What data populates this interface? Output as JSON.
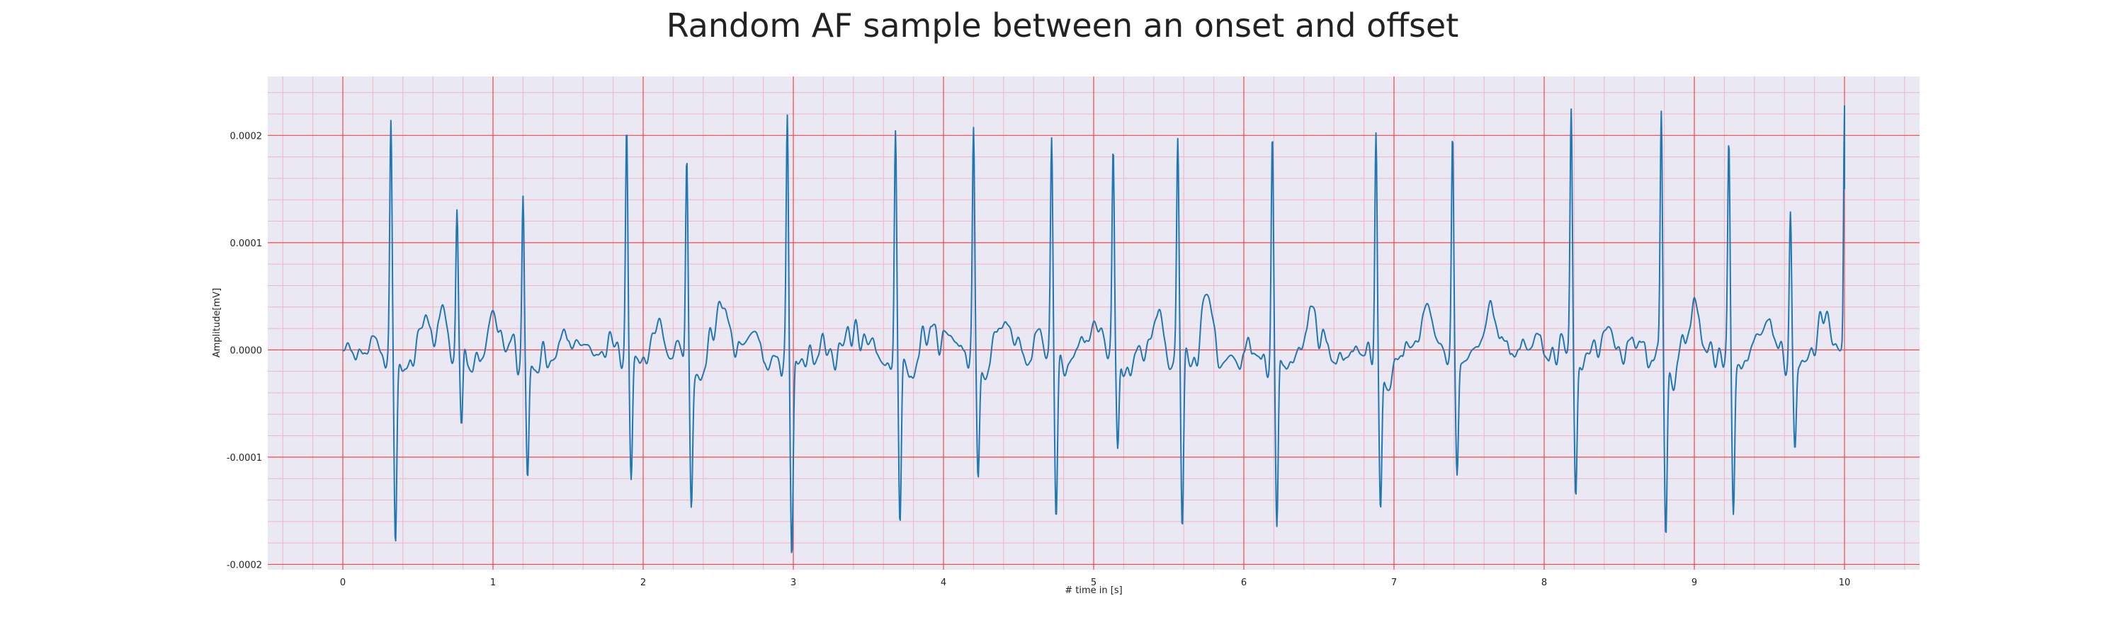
{
  "chart_data": {
    "type": "line",
    "title": "Random AF sample between an onset and offset",
    "xlabel": "# time in [s]",
    "ylabel": "Amplitude[mV]",
    "xlim": [
      -0.5,
      10.5
    ],
    "ylim": [
      -0.000205,
      0.000255
    ],
    "x_ticks": [
      0,
      1,
      2,
      3,
      4,
      5,
      6,
      7,
      8,
      9,
      10
    ],
    "x_tick_labels": [
      "0",
      "1",
      "2",
      "3",
      "4",
      "5",
      "6",
      "7",
      "8",
      "9",
      "10"
    ],
    "y_ticks": [
      -0.0002,
      -0.0001,
      0.0,
      0.0001,
      0.0002
    ],
    "y_tick_labels": [
      "-0.0002",
      "-0.0001",
      "0.0000",
      "0.0001",
      "0.0002"
    ],
    "grid": true,
    "minor_grid": true,
    "colors": {
      "line": "#1f77b4",
      "plot_background": "#eae8f2",
      "major_grid": "#ef4a4a",
      "minor_grid": "#f2b4c2",
      "text": "#222222"
    },
    "series": [
      {
        "qrs_complexes": [
          {
            "t": 0.32,
            "peak": 0.000208,
            "trough": -0.000182
          },
          {
            "t": 0.76,
            "peak": 0.000132,
            "trough": -7.8e-05
          },
          {
            "t": 1.2,
            "peak": 0.000152,
            "trough": -0.000112
          },
          {
            "t": 1.89,
            "peak": 0.000208,
            "trough": -0.000122
          },
          {
            "t": 2.29,
            "peak": 0.00018,
            "trough": -0.000138
          },
          {
            "t": 2.96,
            "peak": 0.000228,
            "trough": -0.000187
          },
          {
            "t": 3.68,
            "peak": 0.000203,
            "trough": -0.00017
          },
          {
            "t": 4.2,
            "peak": 0.0002,
            "trough": -0.00012
          },
          {
            "t": 4.72,
            "peak": 0.000193,
            "trough": -0.000143
          },
          {
            "t": 5.13,
            "peak": 0.000183,
            "trough": -9.5e-05
          },
          {
            "t": 5.56,
            "peak": 0.000188,
            "trough": -0.000181
          },
          {
            "t": 6.19,
            "peak": 0.000204,
            "trough": -0.000181
          },
          {
            "t": 6.88,
            "peak": 0.000203,
            "trough": -0.00014
          },
          {
            "t": 7.39,
            "peak": 0.000204,
            "trough": -0.000108
          },
          {
            "t": 8.18,
            "peak": 0.000222,
            "trough": -0.000131
          },
          {
            "t": 8.78,
            "peak": 0.000232,
            "trough": -0.000161
          },
          {
            "t": 9.23,
            "peak": 0.000188,
            "trough": -0.000147
          },
          {
            "t": 9.64,
            "peak": 0.000133,
            "trough": -8e-05
          }
        ],
        "final_point": {
          "t": 10.0,
          "peak": 0.000219,
          "end": 0.00015
        },
        "baseline_start": 0.0,
        "baseline_end": 10.0,
        "fibrillatory_waves": [
          {
            "t": 0.55,
            "v": 2e-05
          },
          {
            "t": 0.65,
            "v": 2.7e-05
          },
          {
            "t": 1.0,
            "v": 3.3e-05
          },
          {
            "t": 1.55,
            "v": 1.8e-05
          },
          {
            "t": 2.1,
            "v": 2.2e-05
          },
          {
            "t": 2.52,
            "v": 5.3e-05
          },
          {
            "t": 3.42,
            "v": 1.8e-05
          },
          {
            "t": 3.92,
            "v": 2.2e-05
          },
          {
            "t": 4.4,
            "v": 3.1e-05
          },
          {
            "t": 5.02,
            "v": 3.3e-05
          },
          {
            "t": 5.42,
            "v": 3.3e-05
          },
          {
            "t": 5.75,
            "v": 4.3e-05
          },
          {
            "t": 6.45,
            "v": 3.6e-05
          },
          {
            "t": 7.23,
            "v": 3.1e-05
          },
          {
            "t": 7.65,
            "v": 2.9e-05
          },
          {
            "t": 8.42,
            "v": 2.1e-05
          },
          {
            "t": 9.0,
            "v": 4.2e-05
          },
          {
            "t": 9.5,
            "v": 3.1e-05
          },
          {
            "t": 9.86,
            "v": 3.3e-05
          }
        ]
      }
    ]
  }
}
